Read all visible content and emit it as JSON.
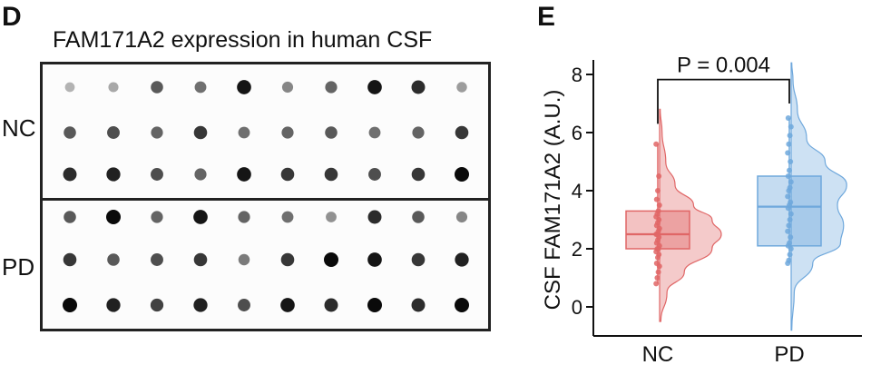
{
  "panel_d": {
    "letter": "D",
    "title": "FAM171A2 expression in human CSF",
    "row_labels": {
      "nc": "NC",
      "pd": "PD"
    },
    "dot_grid": {
      "nc": [
        [
          0.25,
          0.3,
          0.65,
          0.55,
          0.95,
          0.45,
          0.6,
          0.95,
          0.85,
          0.35
        ],
        [
          0.65,
          0.7,
          0.6,
          0.8,
          0.55,
          0.6,
          0.65,
          0.55,
          0.6,
          0.8
        ],
        [
          0.85,
          0.9,
          0.7,
          0.6,
          0.95,
          0.8,
          0.8,
          0.7,
          0.8,
          1.0
        ]
      ],
      "pd": [
        [
          0.65,
          1.0,
          0.6,
          0.95,
          0.6,
          0.55,
          0.4,
          0.85,
          0.65,
          0.45
        ],
        [
          0.8,
          0.65,
          0.7,
          0.8,
          0.5,
          0.8,
          1.0,
          0.95,
          0.8,
          0.9
        ],
        [
          1.0,
          0.9,
          0.75,
          0.9,
          0.7,
          0.95,
          0.85,
          1.0,
          0.85,
          1.0
        ]
      ]
    }
  },
  "panel_e": {
    "letter": "E"
  },
  "chart_data": {
    "type": "raincloud",
    "ylabel": "CSF FAM171A2 (A.U.)",
    "ylim": [
      -1,
      8.5
    ],
    "yticks": [
      0,
      2,
      4,
      6,
      8
    ],
    "categories": [
      "NC",
      "PD"
    ],
    "series": [
      {
        "name": "NC",
        "color": "#e06666",
        "box": {
          "q1": 2.0,
          "median": 2.5,
          "q3": 3.3,
          "min": 0.8,
          "max": 5.6
        },
        "points": [
          0.8,
          1.0,
          1.2,
          1.4,
          1.5,
          1.7,
          1.8,
          1.9,
          2.0,
          2.0,
          2.1,
          2.2,
          2.3,
          2.4,
          2.5,
          2.5,
          2.6,
          2.7,
          2.8,
          2.9,
          3.0,
          3.1,
          3.2,
          3.3,
          3.5,
          3.7,
          4.0,
          4.5,
          5.6
        ],
        "density": {
          "y": [
            -0.5,
            0.5,
            1.2,
            2.0,
            2.5,
            3.0,
            3.5,
            4.2,
            5.0,
            6.0,
            6.8
          ],
          "w": [
            0.02,
            0.12,
            0.4,
            0.85,
            1.0,
            0.85,
            0.55,
            0.25,
            0.1,
            0.04,
            0.01
          ]
        }
      },
      {
        "name": "PD",
        "color": "#6fa8dc",
        "box": {
          "q1": 2.1,
          "median": 3.45,
          "q3": 4.5,
          "min": 1.5,
          "max": 6.5
        },
        "points": [
          1.5,
          1.6,
          1.8,
          2.0,
          2.1,
          2.2,
          2.4,
          2.6,
          2.8,
          3.0,
          3.2,
          3.4,
          3.5,
          3.6,
          3.8,
          4.0,
          4.1,
          4.3,
          4.5,
          4.7,
          5.0,
          5.3,
          5.6,
          5.9,
          6.2,
          6.5
        ],
        "density": {
          "y": [
            -0.8,
            0.5,
            1.5,
            2.2,
            2.8,
            3.5,
            4.2,
            5.0,
            5.8,
            6.8,
            7.8,
            8.4
          ],
          "w": [
            0.01,
            0.05,
            0.35,
            0.8,
            0.85,
            0.75,
            0.9,
            0.55,
            0.25,
            0.1,
            0.03,
            0.01
          ]
        }
      }
    ],
    "annotation": {
      "text": "P = 0.004",
      "y": 8.2
    }
  }
}
